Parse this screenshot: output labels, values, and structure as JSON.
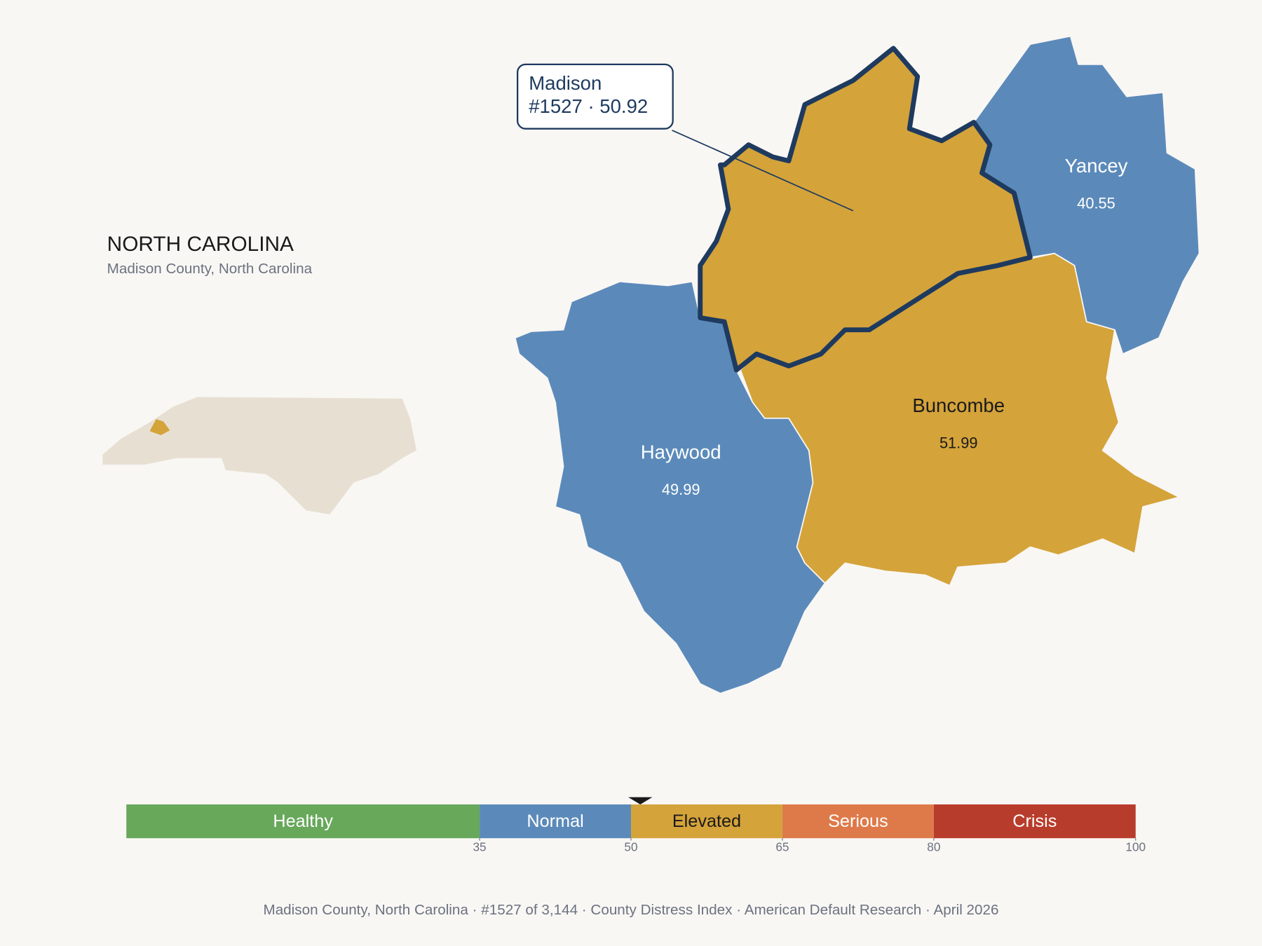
{
  "header": {
    "title": "NORTH CAROLINA",
    "subtitle": "Madison County, North Carolina"
  },
  "counties": [
    {
      "name": "Madison",
      "value": 50.92,
      "color": "#d4a33a",
      "selected": true
    },
    {
      "name": "Yancey",
      "value": 40.55,
      "color": "#5b8aba"
    },
    {
      "name": "Buncombe",
      "value": 51.99,
      "color": "#d4a33a"
    },
    {
      "name": "Haywood",
      "value": 49.99,
      "color": "#5b8aba"
    }
  ],
  "callout": {
    "title": "Madison",
    "detail": "#1527 · 50.92"
  },
  "scale": {
    "range": [
      0,
      100
    ],
    "segments": [
      {
        "label": "Healthy",
        "from": 0,
        "to": 35,
        "color": "#67a85a"
      },
      {
        "label": "Normal",
        "from": 35,
        "to": 50,
        "color": "#5b8aba"
      },
      {
        "label": "Elevated",
        "from": 50,
        "to": 65,
        "color": "#d4a33a"
      },
      {
        "label": "Serious",
        "from": 65,
        "to": 80,
        "color": "#de7a4a"
      },
      {
        "label": "Crisis",
        "from": 80,
        "to": 100,
        "color": "#b83c2c"
      }
    ],
    "ticks": [
      35,
      50,
      65,
      80,
      100
    ]
  },
  "footer": "Madison County, North Carolina  ·  #1527 of 3,144  ·  County Distress Index  ·  American Default Research  ·  April 2026"
}
